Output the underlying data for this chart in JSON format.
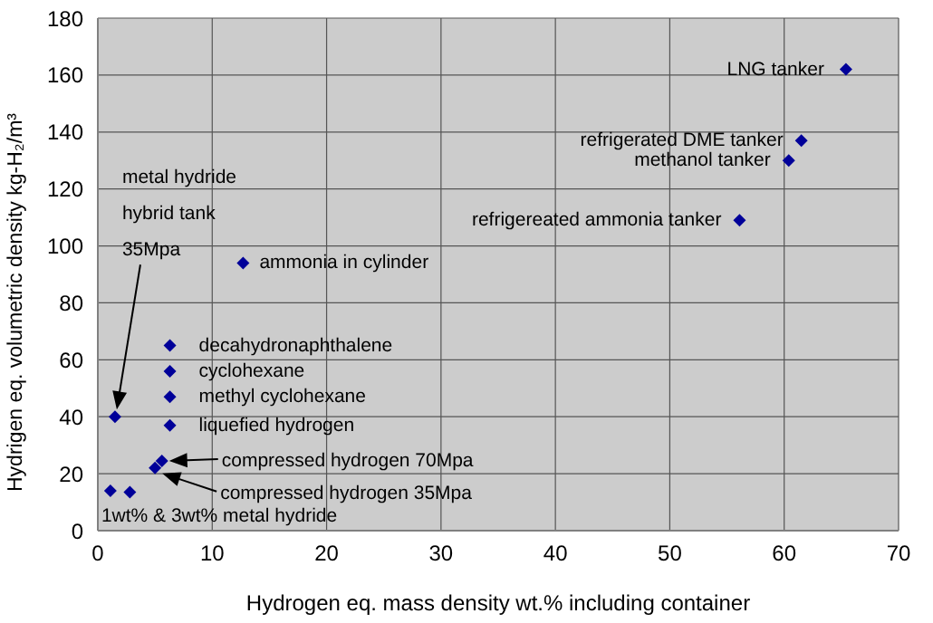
{
  "chart_data": {
    "type": "scatter",
    "xlabel": "Hydrogen eq. mass density wt.% including container",
    "ylabel": "Hydrigen eq. volumetric density kg-H₂/m³",
    "x": [
      65.4,
      61.5,
      60.4,
      56.1,
      12.7,
      6.3,
      6.3,
      6.3,
      6.3,
      5.6,
      5.0,
      1.5,
      1.1,
      2.8
    ],
    "values": [
      162,
      137,
      130,
      109,
      94,
      65,
      56,
      47,
      37,
      24.5,
      22,
      40,
      14,
      13.5
    ],
    "color": "#000099",
    "marker": "diamond",
    "xlim": [
      0,
      70
    ],
    "xticks": [
      0,
      10,
      20,
      30,
      40,
      50,
      60,
      70
    ],
    "ylim": [
      0,
      180
    ],
    "yticks": [
      0,
      20,
      40,
      60,
      80,
      100,
      120,
      140,
      160,
      180
    ],
    "grid": true,
    "annotations": [
      {
        "text": "LNG tanker",
        "x": 65.4,
        "y": 162
      },
      {
        "text": "refrigerated DME tanker",
        "x": 61.5,
        "y": 137
      },
      {
        "text": "methanol tanker",
        "x": 60.4,
        "y": 130
      },
      {
        "text": "refrigereated ammonia tanker",
        "x": 56.1,
        "y": 109
      },
      {
        "text": "ammonia in cylinder",
        "x": 12.7,
        "y": 94
      },
      {
        "text": "decahydronaphthalene",
        "x": 6.3,
        "y": 65
      },
      {
        "text": "cyclohexane",
        "x": 6.3,
        "y": 56
      },
      {
        "text": "methyl cyclohexane",
        "x": 6.3,
        "y": 47
      },
      {
        "text": "liquefied hydrogen",
        "x": 6.3,
        "y": 37
      },
      "compressed hydrogen 70Mpa",
      "compressed hydrogen 35Mpa",
      "metal hydride\nhybrid tank\n35Mpa",
      {
        "text": "1wt% & 3wt% metal hydride",
        "x": 1.1,
        "y": 14
      }
    ]
  }
}
